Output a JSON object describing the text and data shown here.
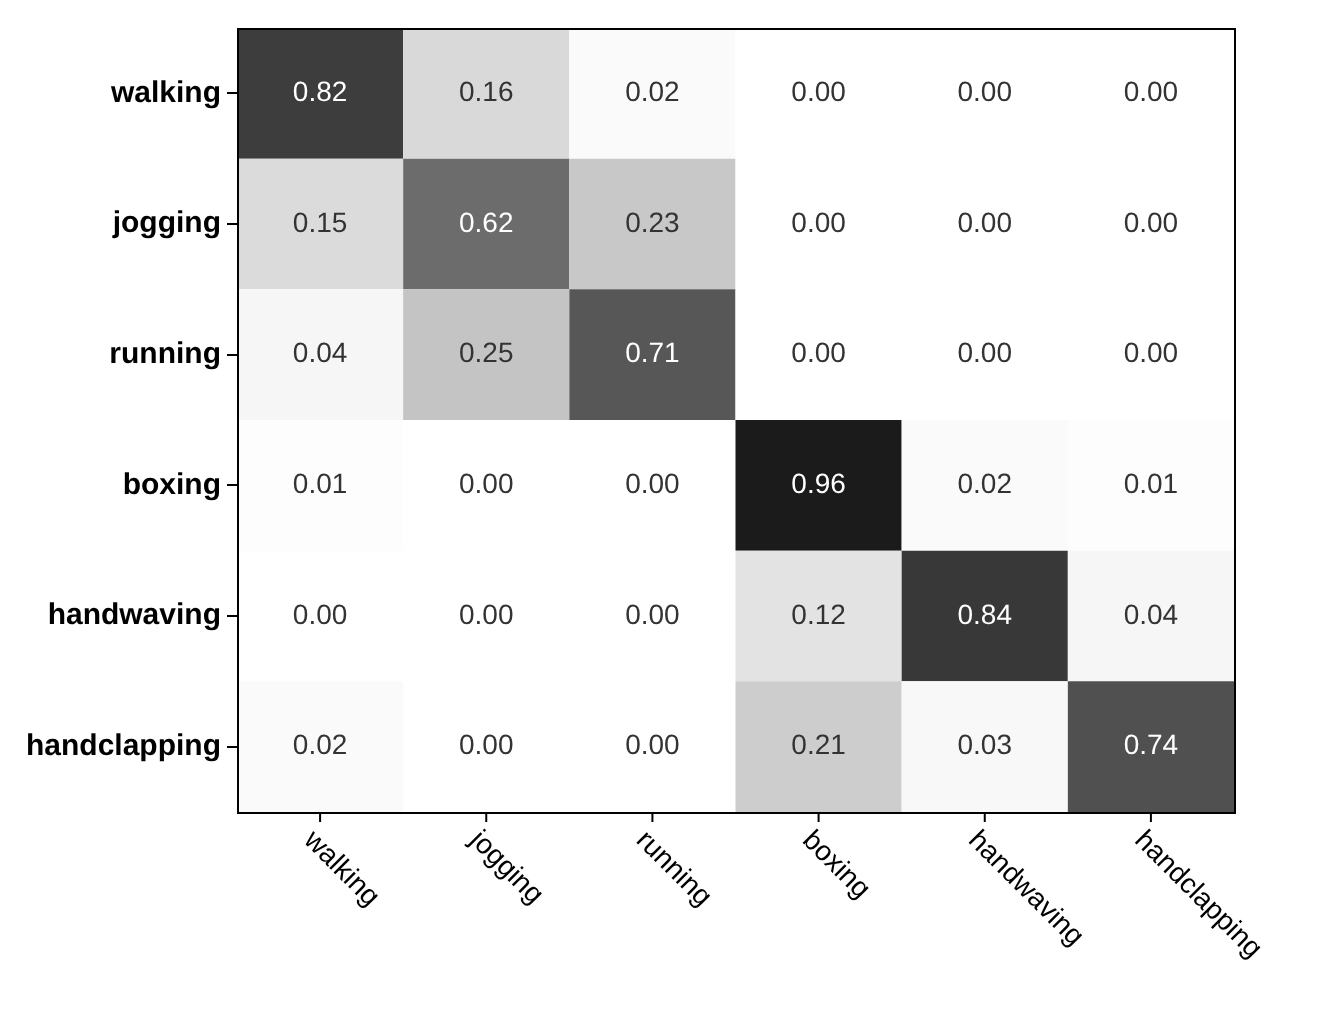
{
  "chart_data": {
    "type": "heatmap",
    "categories": [
      "walking",
      "jogging",
      "running",
      "boxing",
      "handwaving",
      "handclapping"
    ],
    "y_categories": [
      "walking",
      "jogging",
      "running",
      "boxing",
      "handwaving",
      "handclapping"
    ],
    "cells": [
      [
        0.82,
        0.16,
        0.02,
        0.0,
        0.0,
        0.0
      ],
      [
        0.15,
        0.62,
        0.23,
        0.0,
        0.0,
        0.0
      ],
      [
        0.04,
        0.25,
        0.71,
        0.0,
        0.0,
        0.0
      ],
      [
        0.01,
        0.0,
        0.0,
        0.96,
        0.02,
        0.01
      ],
      [
        0.0,
        0.0,
        0.0,
        0.12,
        0.84,
        0.04
      ],
      [
        0.02,
        0.0,
        0.0,
        0.21,
        0.03,
        0.74
      ]
    ],
    "cell_labels": [
      [
        "0.82",
        "0.16",
        "0.02",
        "0.00",
        "0.00",
        "0.00"
      ],
      [
        "0.15",
        "0.62",
        "0.23",
        "0.00",
        "0.00",
        "0.00"
      ],
      [
        "0.04",
        "0.25",
        "0.71",
        "0.00",
        "0.00",
        "0.00"
      ],
      [
        "0.01",
        "0.00",
        "0.00",
        "0.96",
        "0.02",
        "0.01"
      ],
      [
        "0.00",
        "0.00",
        "0.00",
        "0.12",
        "0.84",
        "0.04"
      ],
      [
        "0.02",
        "0.00",
        "0.00",
        "0.21",
        "0.03",
        "0.74"
      ]
    ]
  }
}
